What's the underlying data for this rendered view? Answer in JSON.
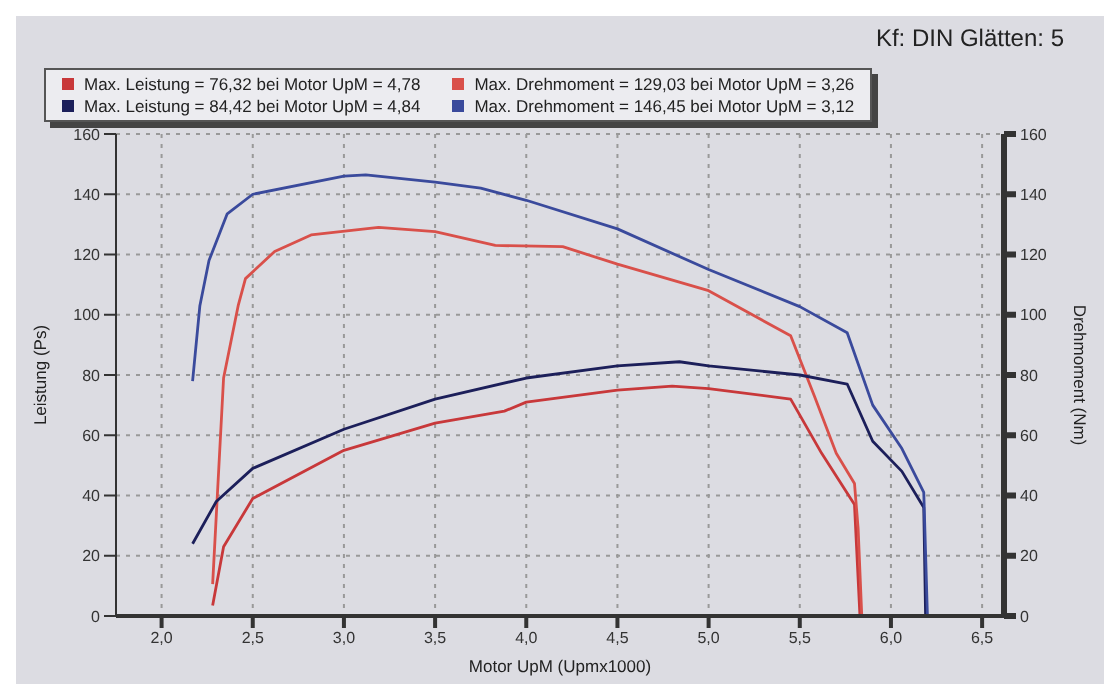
{
  "chart_data": {
    "type": "line",
    "annotations": [
      "Kf: DIN Glätten: 5"
    ],
    "xlabel": "Motor UpM (Upmx1000)",
    "ylabel": "Leistung (Ps)",
    "y2label": "Drehmoment (Nm)",
    "xlim": [
      1.75,
      6.62
    ],
    "xticks": [
      {
        "value": 2.0,
        "label": "2,0"
      },
      {
        "value": 2.5,
        "label": "2,5"
      },
      {
        "value": 3.0,
        "label": "3,0"
      },
      {
        "value": 3.5,
        "label": "3,5"
      },
      {
        "value": 4.0,
        "label": "4,0"
      },
      {
        "value": 4.5,
        "label": "4,5"
      },
      {
        "value": 5.0,
        "label": "5,0"
      },
      {
        "value": 5.5,
        "label": "5,5"
      },
      {
        "value": 6.0,
        "label": "6,0"
      },
      {
        "value": 6.5,
        "label": "6,5"
      }
    ],
    "ylim": [
      0,
      160
    ],
    "yticks": [
      0,
      20,
      40,
      60,
      80,
      100,
      120,
      140,
      160
    ],
    "y2lim": [
      0,
      160
    ],
    "y2ticks": [
      0,
      20,
      40,
      60,
      80,
      100,
      120,
      140,
      160
    ],
    "grid": true,
    "legend": "top",
    "marker": "none",
    "line_style": "solid",
    "series": [
      {
        "name": "Max. Leistung = 76,32 bei Motor UpM = 4,78",
        "color": "#c8383a",
        "x": [
          2.28,
          2.34,
          2.5,
          3.0,
          3.5,
          3.88,
          4.0,
          4.5,
          4.8,
          5.0,
          5.45,
          5.62,
          5.8,
          5.83
        ],
        "values": [
          3.5,
          23,
          39,
          55,
          64,
          68,
          71,
          75,
          76.3,
          75.5,
          72,
          54,
          37,
          0
        ]
      },
      {
        "name": "Max. Drehmoment = 129,03 bei Motor UpM = 3,26",
        "color": "#d9504a",
        "axis": "y2",
        "x": [
          2.28,
          2.34,
          2.42,
          2.46,
          2.62,
          2.82,
          3.19,
          3.5,
          3.83,
          4.2,
          4.5,
          5.0,
          5.45,
          5.58,
          5.7,
          5.8,
          5.82,
          5.84
        ],
        "values": [
          10.6,
          79,
          103,
          112,
          121,
          126.5,
          129,
          127.6,
          123,
          122.6,
          116.8,
          108,
          93,
          73,
          54,
          44,
          29,
          0
        ]
      },
      {
        "name": "Max. Leistung = 84,42 bei Motor UpM = 4,84",
        "color": "#1c1f5a",
        "x": [
          2.17,
          2.3,
          2.5,
          3.0,
          3.5,
          4.0,
          4.5,
          4.84,
          5.0,
          5.5,
          5.76,
          5.9,
          6.06,
          6.18,
          6.19
        ],
        "values": [
          24,
          38,
          49,
          62,
          72,
          79,
          83,
          84.4,
          83,
          80,
          77,
          58,
          48,
          36,
          0
        ]
      },
      {
        "name": "Max. Drehmoment = 146,45 bei Motor UpM = 3,12",
        "color": "#3a4a9c",
        "axis": "y2",
        "x": [
          2.17,
          2.21,
          2.26,
          2.36,
          2.5,
          3.0,
          3.12,
          3.5,
          3.75,
          4.0,
          4.5,
          5.0,
          5.5,
          5.76,
          5.9,
          6.06,
          6.18,
          6.2
        ],
        "values": [
          78,
          103,
          118,
          133.5,
          140,
          146,
          146.4,
          144,
          142,
          138,
          128.5,
          115,
          102.7,
          94,
          70,
          55.6,
          41,
          0
        ]
      }
    ]
  }
}
